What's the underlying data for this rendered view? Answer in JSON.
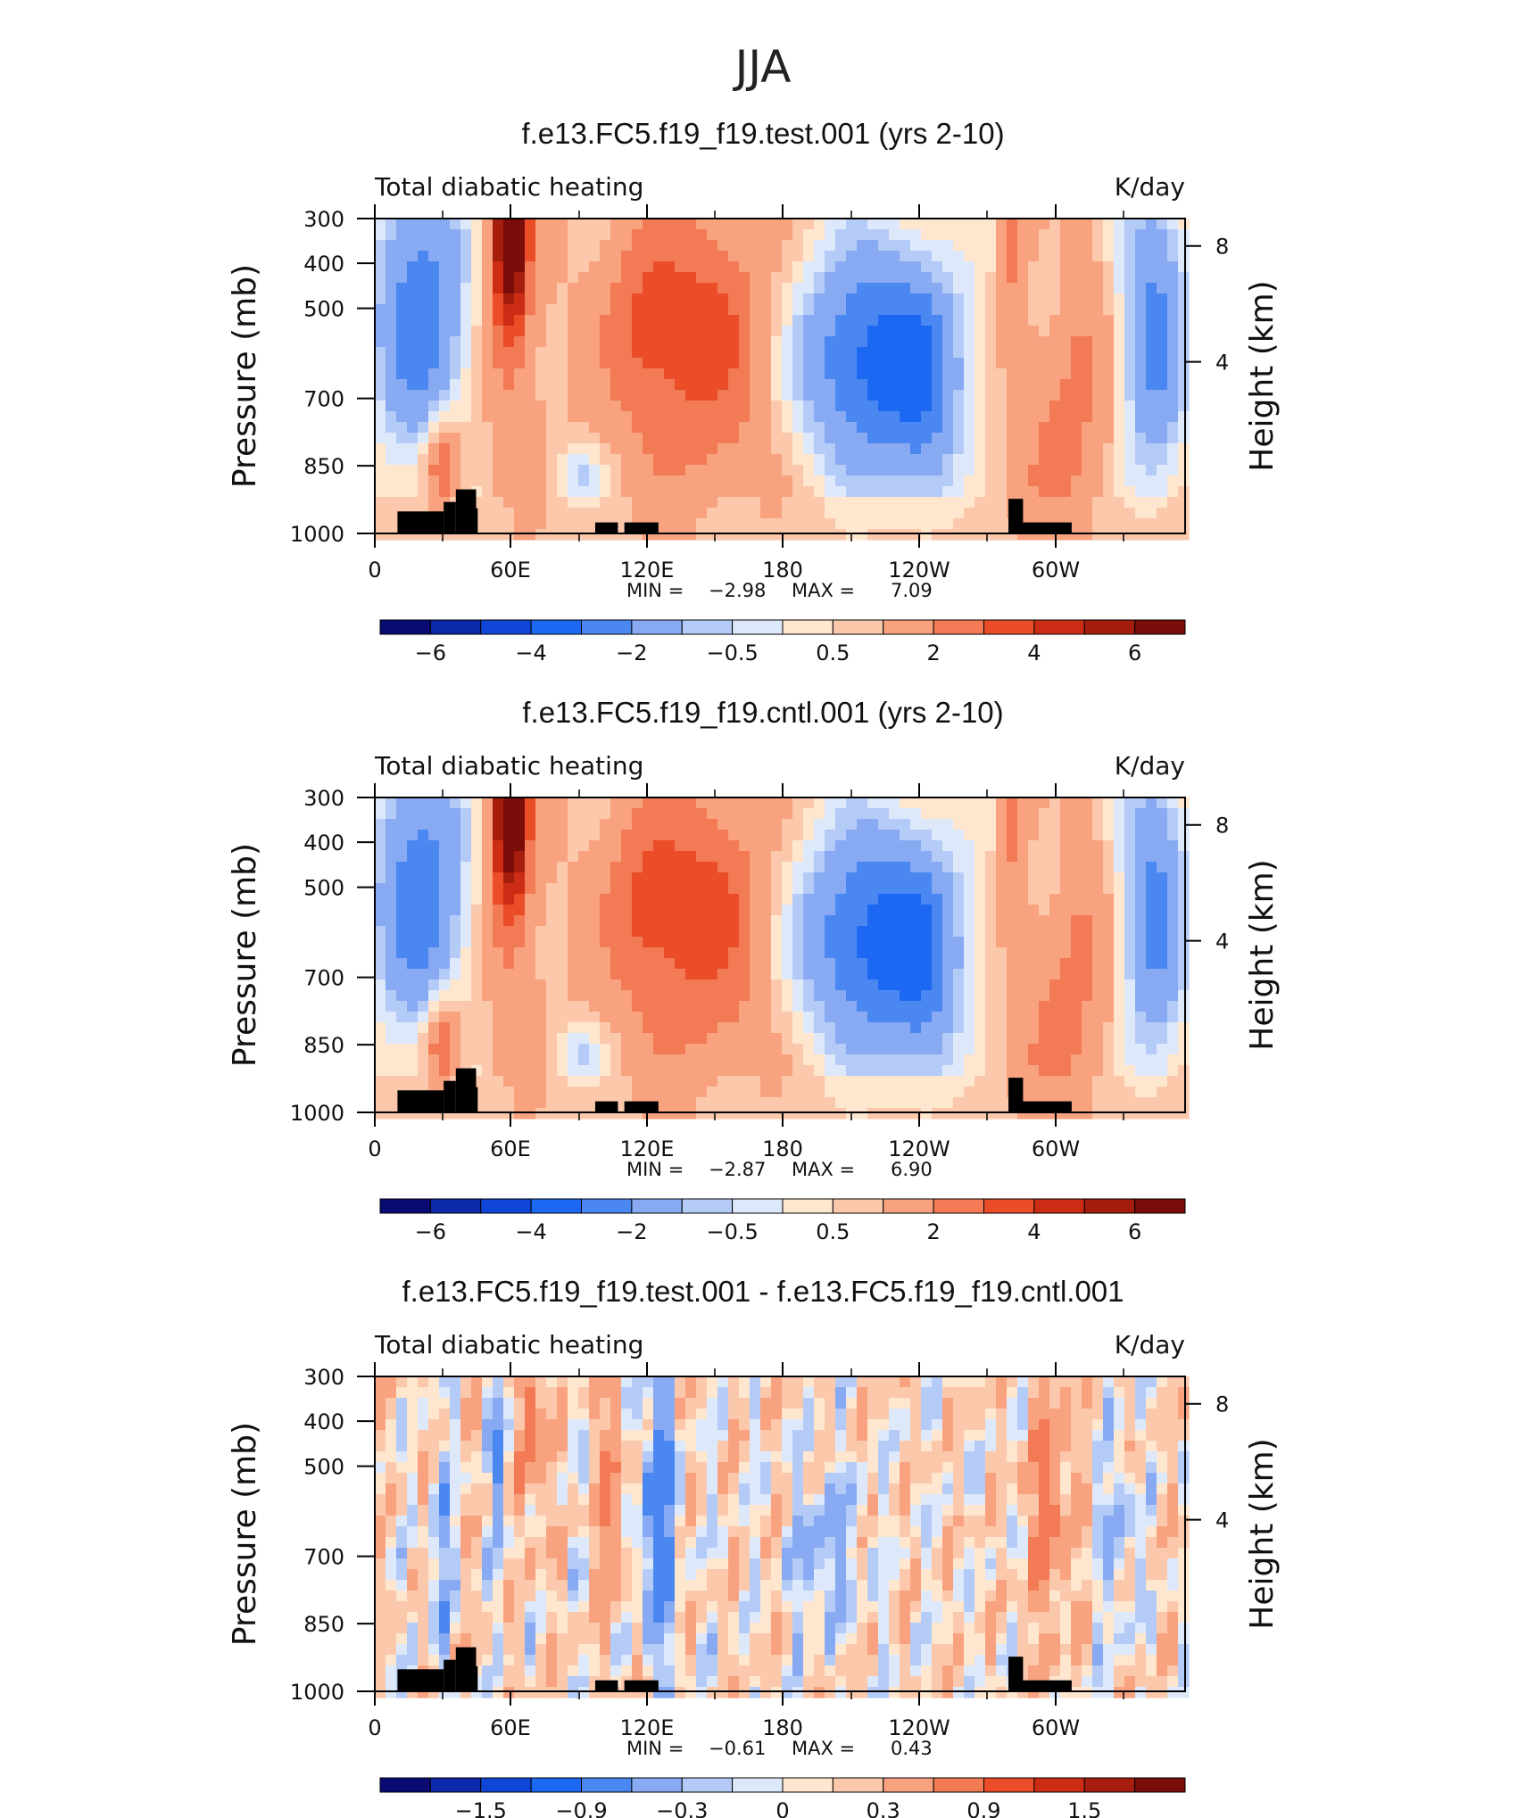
{
  "page_title": "JJA",
  "chart_data": [
    {
      "type": "heatmap",
      "title": "f.e13.FC5.f19_f19.test.001 (yrs 2-10)",
      "left_label": "Total diabatic heating",
      "right_label": "K/day",
      "ylabel": "Pressure (mb)",
      "ylabel_right": "Height (km)",
      "x_ticks": [
        "0",
        "60E",
        "120E",
        "180",
        "120W",
        "60W"
      ],
      "y_ticks": [
        "300",
        "400",
        "500",
        "700",
        "850",
        "1000"
      ],
      "y_right_ticks": [
        "8",
        "4"
      ],
      "stats": {
        "min_label": "MIN =",
        "min": "−2.98",
        "max_label": "MAX =",
        "max": "7.09"
      },
      "colorbar_labels": [
        "−6",
        "−4",
        "−2",
        "−0.5",
        "0.5",
        "2",
        "4",
        "6"
      ],
      "colorbar_colors": [
        "#0a0a73",
        "#0b29a8",
        "#0f46d7",
        "#1d68f2",
        "#4b87f0",
        "#87aaf2",
        "#b5cbf7",
        "#dde9fb",
        "#fee6cf",
        "#fcc8ab",
        "#f8a280",
        "#f27a54",
        "#ea4d28",
        "#cc2c14",
        "#a41d0d",
        "#7a0c09"
      ],
      "field": "full"
    },
    {
      "type": "heatmap",
      "title": "f.e13.FC5.f19_f19.cntl.001 (yrs 2-10)",
      "left_label": "Total diabatic heating",
      "right_label": "K/day",
      "ylabel": "Pressure (mb)",
      "ylabel_right": "Height (km)",
      "x_ticks": [
        "0",
        "60E",
        "120E",
        "180",
        "120W",
        "60W"
      ],
      "y_ticks": [
        "300",
        "400",
        "500",
        "700",
        "850",
        "1000"
      ],
      "y_right_ticks": [
        "8",
        "4"
      ],
      "stats": {
        "min_label": "MIN =",
        "min": "−2.87",
        "max_label": "MAX =",
        "max": "6.90"
      },
      "colorbar_labels": [
        "−6",
        "−4",
        "−2",
        "−0.5",
        "0.5",
        "2",
        "4",
        "6"
      ],
      "colorbar_colors": [
        "#0a0a73",
        "#0b29a8",
        "#0f46d7",
        "#1d68f2",
        "#4b87f0",
        "#87aaf2",
        "#b5cbf7",
        "#dde9fb",
        "#fee6cf",
        "#fcc8ab",
        "#f8a280",
        "#f27a54",
        "#ea4d28",
        "#cc2c14",
        "#a41d0d",
        "#7a0c09"
      ],
      "field": "full"
    },
    {
      "type": "heatmap",
      "title": "f.e13.FC5.f19_f19.test.001 - f.e13.FC5.f19_f19.cntl.001",
      "left_label": "Total diabatic heating",
      "right_label": "K/day",
      "ylabel": "Pressure (mb)",
      "ylabel_right": "Height (km)",
      "x_ticks": [
        "0",
        "60E",
        "120E",
        "180",
        "120W",
        "60W"
      ],
      "y_ticks": [
        "300",
        "400",
        "500",
        "700",
        "850",
        "1000"
      ],
      "y_right_ticks": [
        "8",
        "4"
      ],
      "stats": {
        "min_label": "MIN =",
        "min": "−0.61",
        "max_label": "MAX =",
        "max": "0.43"
      },
      "colorbar_labels": [
        "−1.5",
        "−0.9",
        "−0.3",
        "0",
        "0.3",
        "0.9",
        "1.5"
      ],
      "colorbar_colors": [
        "#0a0a73",
        "#0b29a8",
        "#0f46d7",
        "#1d68f2",
        "#4b87f0",
        "#87aaf2",
        "#b5cbf7",
        "#dde9fb",
        "#fee6cf",
        "#fcc8ab",
        "#f8a280",
        "#f27a54",
        "#ea4d28",
        "#cc2c14",
        "#a41d0d",
        "#7a0c09"
      ],
      "field": "diff"
    }
  ]
}
